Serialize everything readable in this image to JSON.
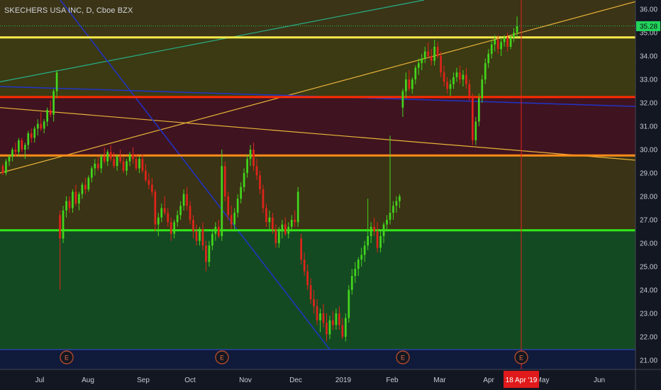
{
  "header": {
    "symbol_title": "SKECHERS USA INC, D, Cboe BZX"
  },
  "price_axis": {
    "labels": [
      "36.00",
      "35.00",
      "34.00",
      "33.00",
      "32.00",
      "31.00",
      "30.00",
      "29.00",
      "28.00",
      "27.00",
      "26.00",
      "25.00",
      "24.00",
      "23.00",
      "22.00",
      "21.00"
    ],
    "last_price_label": "35.28",
    "last_price_color": "#22d35a"
  },
  "time_axis": {
    "labels": [
      "Jul",
      "Aug",
      "Sep",
      "Oct",
      "Nov",
      "Dec",
      "2019",
      "Feb",
      "Mar",
      "Apr",
      "May",
      "Jun"
    ],
    "cursor_label": "18 Apr '19",
    "cursor_color": "#e0191b"
  },
  "earnings_markers": {
    "label": "E",
    "count": 4
  },
  "colors": {
    "background": "#131722",
    "up": "#43d61d",
    "down": "#e0241a",
    "yellow_line": "#ffe94a",
    "red_line": "#ff2b00",
    "orange_line": "#ff8c1a",
    "green_line": "#33e81a",
    "zone_top": "#3b3416",
    "zone_upper": "#3b3a12",
    "zone_red": "#3f1420",
    "zone_mid": "#3a3315",
    "zone_green": "#144a22"
  },
  "chart_data": {
    "type": "candlestick",
    "title": "SKECHERS USA INC, D, Cboe BZX",
    "ylim": [
      20.6,
      36.4
    ],
    "x_ticks": [
      "Jul",
      "Aug",
      "Sep",
      "Oct",
      "Nov",
      "Dec",
      "2019",
      "Feb",
      "Mar",
      "Apr",
      "May",
      "Jun"
    ],
    "horizontal_levels": [
      {
        "price": 34.8,
        "color": "yellow"
      },
      {
        "price": 32.25,
        "color": "red"
      },
      {
        "price": 29.75,
        "color": "orange"
      },
      {
        "price": 26.55,
        "color": "green"
      }
    ],
    "zones": [
      {
        "from": 34.8,
        "to": 36.4,
        "color": "dark olive"
      },
      {
        "from": 32.25,
        "to": 34.8,
        "color": "olive"
      },
      {
        "from": 29.75,
        "to": 32.25,
        "color": "maroon"
      },
      {
        "from": 26.55,
        "to": 29.75,
        "color": "olive"
      },
      {
        "from": 21.45,
        "to": 26.55,
        "color": "green"
      }
    ],
    "trendlines": [
      {
        "from": [
          "Jun 18",
          "31.8"
        ],
        "to": [
          "Jun 1 2019",
          "29.6"
        ],
        "color": "orange"
      },
      {
        "from": [
          "Jun 18",
          "29.0"
        ],
        "to": [
          "Jun 10 2019",
          "36.3"
        ],
        "color": "orange"
      },
      {
        "from": [
          "Jun 18",
          "32.9"
        ],
        "to": [
          "Feb 20 2019",
          "36.3"
        ],
        "color": "teal"
      },
      {
        "from": [
          "Jun 18",
          "32.7"
        ],
        "to": [
          "Jun 10 2019",
          "31.8"
        ],
        "color": "blue"
      },
      {
        "from": [
          "Jul 12",
          "36.0"
        ],
        "to": [
          "Dec 26",
          "21.5"
        ],
        "color": "blue"
      }
    ],
    "last_price": 35.28,
    "cursor_date": "18 Apr '19",
    "earnings_dates": [
      "Jul 19",
      "Oct 18",
      "Feb 7",
      "Apr 18"
    ],
    "candles": [
      [
        29.3,
        29.4,
        28.9,
        29.0
      ],
      [
        29.0,
        29.6,
        28.9,
        29.5
      ],
      [
        29.5,
        29.8,
        29.3,
        29.7
      ],
      [
        29.7,
        30.1,
        29.5,
        30.0
      ],
      [
        30.0,
        30.3,
        29.7,
        29.9
      ],
      [
        29.9,
        30.5,
        29.7,
        30.4
      ],
      [
        30.4,
        30.5,
        29.9,
        30.0
      ],
      [
        30.0,
        30.3,
        29.6,
        30.2
      ],
      [
        30.2,
        30.8,
        30.0,
        30.7
      ],
      [
        30.7,
        30.9,
        30.3,
        30.5
      ],
      [
        30.5,
        31.0,
        30.3,
        30.9
      ],
      [
        30.9,
        31.3,
        30.6,
        31.1
      ],
      [
        31.1,
        31.6,
        30.8,
        30.9
      ],
      [
        30.9,
        31.3,
        30.7,
        31.2
      ],
      [
        31.2,
        31.8,
        31.0,
        31.7
      ],
      [
        31.7,
        32.1,
        31.4,
        31.5
      ],
      [
        31.5,
        32.6,
        31.2,
        32.5
      ],
      [
        32.5,
        33.4,
        32.2,
        33.3
      ],
      [
        27.2,
        27.4,
        24.0,
        26.2
      ],
      [
        26.2,
        27.6,
        26.0,
        27.4
      ],
      [
        27.4,
        28.0,
        27.1,
        27.8
      ],
      [
        27.8,
        28.0,
        27.3,
        27.5
      ],
      [
        27.5,
        28.3,
        27.3,
        28.2
      ],
      [
        28.2,
        28.5,
        27.6,
        27.7
      ],
      [
        27.7,
        28.2,
        27.4,
        28.1
      ],
      [
        28.1,
        28.6,
        27.9,
        28.5
      ],
      [
        28.5,
        28.8,
        28.1,
        28.3
      ],
      [
        28.3,
        28.9,
        28.2,
        28.8
      ],
      [
        28.8,
        29.3,
        28.6,
        29.2
      ],
      [
        29.2,
        29.6,
        28.9,
        29.4
      ],
      [
        29.4,
        29.7,
        29.1,
        29.2
      ],
      [
        29.2,
        29.8,
        29.0,
        29.7
      ],
      [
        29.7,
        30.1,
        29.4,
        29.5
      ],
      [
        29.5,
        30.0,
        29.3,
        29.9
      ],
      [
        29.9,
        30.2,
        29.5,
        29.6
      ],
      [
        29.6,
        29.9,
        29.2,
        29.3
      ],
      [
        29.3,
        29.8,
        29.1,
        29.7
      ],
      [
        29.7,
        30.0,
        29.4,
        29.5
      ],
      [
        29.5,
        29.7,
        29.0,
        29.1
      ],
      [
        29.1,
        29.6,
        28.9,
        29.5
      ],
      [
        29.5,
        29.9,
        29.3,
        29.8
      ],
      [
        29.8,
        30.1,
        29.4,
        29.6
      ],
      [
        29.6,
        29.8,
        29.1,
        29.2
      ],
      [
        29.2,
        29.7,
        29.0,
        29.6
      ],
      [
        29.6,
        29.8,
        29.0,
        29.1
      ],
      [
        29.1,
        29.4,
        28.6,
        28.7
      ],
      [
        28.7,
        29.0,
        28.3,
        28.5
      ],
      [
        28.5,
        28.8,
        28.0,
        28.2
      ],
      [
        28.2,
        28.3,
        26.5,
        26.8
      ],
      [
        26.8,
        27.3,
        26.3,
        27.1
      ],
      [
        27.1,
        27.7,
        26.9,
        27.5
      ],
      [
        27.5,
        28.0,
        27.2,
        27.3
      ],
      [
        27.3,
        27.5,
        26.7,
        26.9
      ],
      [
        26.9,
        27.1,
        26.1,
        26.4
      ],
      [
        26.4,
        27.0,
        26.2,
        26.9
      ],
      [
        26.9,
        27.4,
        26.7,
        27.2
      ],
      [
        27.2,
        27.8,
        27.0,
        27.6
      ],
      [
        27.6,
        28.3,
        27.4,
        28.1
      ],
      [
        28.1,
        28.4,
        27.4,
        27.6
      ],
      [
        27.6,
        27.8,
        26.8,
        27.0
      ],
      [
        27.0,
        27.2,
        26.2,
        26.5
      ],
      [
        26.5,
        26.8,
        25.9,
        26.1
      ],
      [
        26.1,
        26.7,
        25.9,
        26.6
      ],
      [
        26.6,
        26.9,
        25.7,
        25.9
      ],
      [
        25.9,
        26.1,
        24.8,
        25.2
      ],
      [
        25.2,
        26.1,
        25.0,
        25.9
      ],
      [
        25.9,
        26.6,
        25.7,
        26.4
      ],
      [
        26.4,
        26.9,
        26.1,
        26.7
      ],
      [
        26.7,
        27.0,
        26.2,
        26.3
      ],
      [
        26.3,
        30.0,
        26.1,
        29.3
      ],
      [
        29.3,
        29.5,
        27.8,
        28.0
      ],
      [
        28.0,
        28.2,
        27.0,
        27.2
      ],
      [
        27.2,
        27.6,
        26.6,
        26.8
      ],
      [
        26.8,
        27.5,
        26.5,
        27.3
      ],
      [
        27.3,
        28.1,
        27.1,
        27.9
      ],
      [
        27.9,
        28.6,
        27.7,
        28.4
      ],
      [
        28.4,
        29.2,
        28.2,
        29.0
      ],
      [
        29.0,
        29.8,
        28.8,
        29.6
      ],
      [
        29.6,
        30.2,
        29.3,
        30.0
      ],
      [
        30.0,
        30.3,
        29.1,
        29.3
      ],
      [
        29.3,
        29.6,
        28.7,
        28.9
      ],
      [
        28.9,
        29.1,
        28.1,
        28.3
      ],
      [
        28.3,
        28.5,
        27.3,
        27.5
      ],
      [
        27.5,
        27.7,
        26.7,
        26.9
      ],
      [
        26.9,
        27.4,
        26.6,
        27.1
      ],
      [
        27.1,
        27.3,
        26.4,
        26.6
      ],
      [
        26.6,
        26.8,
        25.8,
        26.0
      ],
      [
        26.0,
        26.7,
        25.8,
        26.5
      ],
      [
        26.5,
        27.0,
        26.2,
        26.8
      ],
      [
        26.8,
        27.1,
        26.3,
        26.4
      ],
      [
        26.4,
        26.9,
        26.2,
        26.7
      ],
      [
        26.7,
        27.2,
        26.5,
        27.0
      ],
      [
        27.0,
        27.4,
        26.7,
        26.9
      ],
      [
        26.9,
        28.4,
        26.7,
        28.2
      ],
      [
        26.2,
        26.4,
        25.1,
        25.3
      ],
      [
        25.3,
        25.6,
        24.6,
        24.8
      ],
      [
        24.8,
        25.1,
        24.0,
        24.2
      ],
      [
        24.2,
        24.5,
        23.4,
        23.6
      ],
      [
        23.6,
        24.0,
        23.0,
        23.3
      ],
      [
        23.3,
        23.6,
        22.5,
        22.7
      ],
      [
        22.7,
        23.2,
        22.2,
        23.0
      ],
      [
        23.0,
        23.4,
        22.4,
        22.6
      ],
      [
        22.6,
        23.0,
        21.8,
        22.1
      ],
      [
        22.1,
        22.9,
        21.9,
        22.7
      ],
      [
        22.7,
        23.1,
        22.3,
        22.5
      ],
      [
        22.5,
        23.2,
        22.3,
        23.0
      ],
      [
        23.0,
        23.3,
        22.3,
        22.5
      ],
      [
        22.5,
        22.8,
        21.9,
        22.0
      ],
      [
        22.0,
        23.0,
        21.8,
        22.8
      ],
      [
        22.8,
        24.2,
        22.6,
        24.0
      ],
      [
        24.0,
        24.9,
        23.8,
        24.6
      ],
      [
        24.6,
        25.2,
        24.3,
        24.9
      ],
      [
        24.9,
        25.4,
        24.6,
        25.3
      ],
      [
        25.3,
        25.8,
        25.0,
        25.5
      ],
      [
        25.5,
        26.1,
        25.2,
        25.9
      ],
      [
        25.9,
        27.9,
        25.7,
        26.3
      ],
      [
        26.3,
        26.9,
        26.0,
        26.7
      ],
      [
        26.7,
        27.1,
        26.3,
        26.5
      ],
      [
        26.5,
        26.9,
        25.6,
        25.8
      ],
      [
        25.8,
        26.5,
        25.6,
        26.3
      ],
      [
        26.3,
        26.9,
        26.0,
        26.8
      ],
      [
        26.8,
        27.2,
        26.5,
        27.0
      ],
      [
        27.0,
        30.6,
        26.8,
        27.3
      ],
      [
        27.3,
        27.8,
        27.0,
        27.6
      ],
      [
        27.6,
        28.0,
        27.3,
        27.8
      ],
      [
        27.8,
        28.1,
        27.5,
        28.0
      ],
      [
        31.8,
        32.6,
        31.4,
        32.5
      ],
      [
        32.5,
        33.3,
        32.2,
        33.0
      ],
      [
        33.0,
        33.4,
        32.5,
        32.6
      ],
      [
        32.6,
        33.1,
        32.4,
        33.0
      ],
      [
        33.0,
        33.6,
        32.8,
        33.5
      ],
      [
        33.5,
        33.9,
        33.2,
        33.7
      ],
      [
        33.7,
        34.1,
        33.4,
        33.9
      ],
      [
        33.9,
        34.4,
        33.7,
        34.2
      ],
      [
        34.2,
        34.6,
        33.9,
        34.0
      ],
      [
        34.0,
        34.3,
        33.6,
        33.8
      ],
      [
        33.8,
        34.7,
        33.6,
        34.4
      ],
      [
        34.4,
        34.6,
        33.9,
        34.0
      ],
      [
        34.0,
        34.2,
        33.1,
        33.3
      ],
      [
        33.3,
        33.6,
        32.7,
        32.9
      ],
      [
        32.9,
        33.1,
        32.4,
        32.6
      ],
      [
        32.6,
        33.0,
        32.3,
        32.8
      ],
      [
        32.8,
        33.3,
        32.6,
        33.1
      ],
      [
        33.1,
        33.5,
        32.9,
        33.3
      ],
      [
        33.3,
        33.6,
        32.8,
        33.0
      ],
      [
        33.0,
        33.4,
        32.7,
        33.2
      ],
      [
        33.2,
        33.5,
        32.6,
        32.8
      ],
      [
        32.8,
        33.0,
        32.1,
        32.3
      ],
      [
        32.3,
        32.4,
        30.2,
        30.4
      ],
      [
        30.4,
        31.4,
        30.2,
        31.2
      ],
      [
        31.2,
        32.4,
        31.0,
        32.2
      ],
      [
        32.2,
        33.2,
        32.0,
        33.0
      ],
      [
        33.0,
        33.9,
        32.8,
        33.7
      ],
      [
        33.7,
        34.3,
        33.5,
        34.1
      ],
      [
        34.1,
        34.7,
        33.9,
        34.5
      ],
      [
        34.5,
        34.9,
        34.2,
        34.7
      ],
      [
        34.7,
        34.9,
        34.1,
        34.3
      ],
      [
        34.3,
        34.8,
        34.0,
        34.6
      ],
      [
        34.6,
        34.9,
        34.4,
        34.8
      ],
      [
        34.8,
        35.0,
        34.2,
        34.4
      ],
      [
        34.4,
        34.9,
        34.3,
        34.8
      ],
      [
        34.8,
        35.2,
        34.6,
        35.0
      ],
      [
        35.0,
        35.7,
        34.8,
        35.28
      ]
    ]
  }
}
